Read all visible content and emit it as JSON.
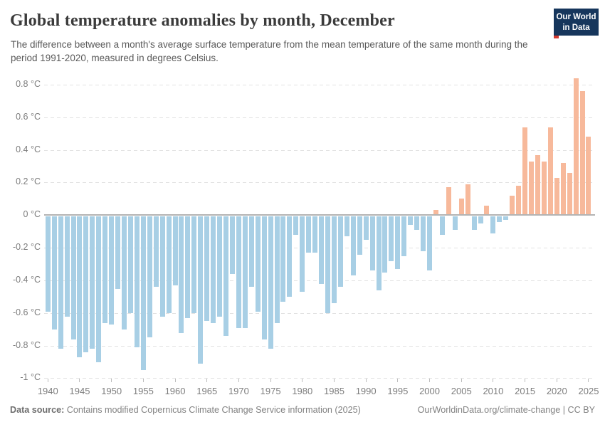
{
  "header": {
    "title": "Global temperature anomalies by month, December",
    "subtitle": "The difference between a month's average surface temperature from the mean temperature of the same month during the period 1991-2020, measured in degrees Celsius.",
    "logo": {
      "line1": "Our World",
      "line2": "in Data"
    }
  },
  "footer": {
    "source_label": "Data source:",
    "source_text": " Contains modified Copernicus Climate Change Service information (2025)",
    "link_text": "OurWorldinData.org/climate-change | CC BY"
  },
  "chart_data": {
    "type": "bar",
    "title": "Global temperature anomalies by month, December",
    "unit": "°C",
    "ylim": [
      -1,
      0.9
    ],
    "grid": "horizontal-dashed",
    "colors": {
      "positive": "#f7b99b",
      "negative": "#a8cfe5",
      "zero_line": "#b3b3b3"
    },
    "x": [
      1940,
      1941,
      1942,
      1943,
      1944,
      1945,
      1946,
      1947,
      1948,
      1949,
      1950,
      1951,
      1952,
      1953,
      1954,
      1955,
      1956,
      1957,
      1958,
      1959,
      1960,
      1961,
      1962,
      1963,
      1964,
      1965,
      1966,
      1967,
      1968,
      1969,
      1970,
      1971,
      1972,
      1973,
      1974,
      1975,
      1976,
      1977,
      1978,
      1979,
      1980,
      1981,
      1982,
      1983,
      1984,
      1985,
      1986,
      1987,
      1988,
      1989,
      1990,
      1991,
      1992,
      1993,
      1994,
      1995,
      1996,
      1997,
      1998,
      1999,
      2000,
      2001,
      2002,
      2003,
      2004,
      2005,
      2006,
      2007,
      2008,
      2009,
      2010,
      2011,
      2012,
      2013,
      2014,
      2015,
      2016,
      2017,
      2018,
      2019,
      2020,
      2021,
      2022,
      2023,
      2024,
      2025
    ],
    "values": [
      -0.59,
      -0.7,
      -0.82,
      -0.62,
      -0.76,
      -0.87,
      -0.84,
      -0.82,
      -0.9,
      -0.66,
      -0.67,
      -0.45,
      -0.7,
      -0.6,
      -0.81,
      -0.95,
      -0.75,
      -0.44,
      -0.62,
      -0.6,
      -0.43,
      -0.72,
      -0.63,
      -0.6,
      -0.91,
      -0.65,
      -0.66,
      -0.62,
      -0.74,
      -0.36,
      -0.69,
      -0.69,
      -0.44,
      -0.59,
      -0.76,
      -0.82,
      -0.66,
      -0.53,
      -0.5,
      -0.12,
      -0.47,
      -0.23,
      -0.23,
      -0.42,
      -0.6,
      -0.54,
      -0.44,
      -0.13,
      -0.37,
      -0.24,
      -0.15,
      -0.34,
      -0.46,
      -0.35,
      -0.28,
      -0.33,
      -0.25,
      -0.06,
      -0.09,
      -0.22,
      -0.34,
      0.03,
      -0.12,
      0.17,
      -0.09,
      0.1,
      0.19,
      -0.09,
      -0.05,
      0.06,
      -0.11,
      -0.04,
      -0.03,
      0.12,
      0.18,
      0.54,
      0.33,
      0.37,
      0.33,
      0.54,
      0.23,
      0.32,
      0.26,
      0.84,
      0.76,
      0.48
    ],
    "y_ticks": [
      {
        "v": 0.8,
        "label": "0.8 °C"
      },
      {
        "v": 0.6,
        "label": "0.6 °C"
      },
      {
        "v": 0.4,
        "label": "0.4 °C"
      },
      {
        "v": 0.2,
        "label": "0.2 °C"
      },
      {
        "v": 0,
        "label": "0 °C"
      },
      {
        "v": -0.2,
        "label": "-0.2 °C"
      },
      {
        "v": -0.4,
        "label": "-0.4 °C"
      },
      {
        "v": -0.6,
        "label": "-0.6 °C"
      },
      {
        "v": -0.8,
        "label": "-0.8 °C"
      },
      {
        "v": -1,
        "label": "-1 °C"
      }
    ],
    "x_ticks": [
      1940,
      1945,
      1950,
      1955,
      1960,
      1965,
      1970,
      1975,
      1980,
      1985,
      1990,
      1995,
      2000,
      2005,
      2010,
      2015,
      2020,
      2025
    ]
  }
}
